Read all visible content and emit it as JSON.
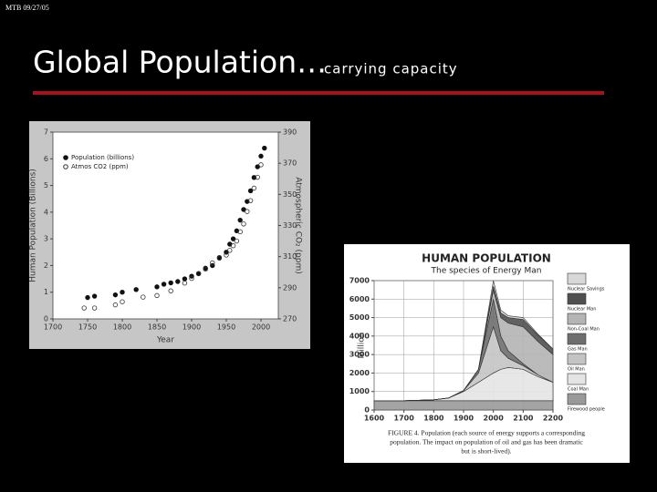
{
  "header": {
    "stamp": "MTB 09/27/05",
    "title": "Global Population…",
    "subtitle": "carrying capacity"
  },
  "chart_data": [
    {
      "type": "scatter",
      "xlabel": "Year",
      "ylabel": "Human Population (Billions)",
      "y2label": "Atmospheric CO₂ (ppm)",
      "xlim": [
        1700,
        2025
      ],
      "xticks": [
        1700,
        1750,
        1800,
        1850,
        1900,
        1950,
        2000
      ],
      "ylim": [
        0,
        7
      ],
      "yticks": [
        0,
        1,
        2,
        3,
        4,
        5,
        6,
        7
      ],
      "y2lim": [
        270,
        390
      ],
      "y2ticks": [
        270,
        290,
        310,
        330,
        350,
        370,
        390
      ],
      "grid": false,
      "legend": "upper left",
      "series": [
        {
          "name": "Population (billions)",
          "color": "#111111",
          "filled": true,
          "x": [
            1750,
            1760,
            1790,
            1800,
            1820,
            1850,
            1860,
            1870,
            1880,
            1890,
            1900,
            1910,
            1920,
            1930,
            1940,
            1950,
            1955,
            1960,
            1965,
            1970,
            1975,
            1980,
            1985,
            1990,
            1995,
            2000,
            2005
          ],
          "values": [
            0.8,
            0.85,
            0.9,
            1.0,
            1.1,
            1.2,
            1.3,
            1.35,
            1.4,
            1.5,
            1.6,
            1.7,
            1.9,
            2.0,
            2.3,
            2.5,
            2.8,
            3.0,
            3.3,
            3.7,
            4.1,
            4.4,
            4.8,
            5.3,
            5.7,
            6.1,
            6.4
          ]
        },
        {
          "name": "Atmos CO2 (ppm)",
          "color": "#333333",
          "filled": false,
          "axis": "y2",
          "x": [
            1745,
            1760,
            1790,
            1800,
            1830,
            1850,
            1870,
            1890,
            1900,
            1910,
            1920,
            1930,
            1940,
            1950,
            1955,
            1960,
            1965,
            1970,
            1975,
            1980,
            1985,
            1990,
            1995,
            2000
          ],
          "values": [
            277,
            277,
            279,
            281,
            284,
            285,
            288,
            293,
            296,
            299,
            302,
            306,
            309,
            311,
            314,
            317,
            320,
            326,
            331,
            339,
            346,
            354,
            361,
            369
          ]
        }
      ]
    },
    {
      "type": "area",
      "title": "HUMAN POPULATION",
      "subtitle": "The species of Energy Man",
      "ylabel": "Million",
      "xlim": [
        1600,
        2200
      ],
      "xticks": [
        1600,
        1700,
        1800,
        1900,
        2000,
        2100,
        2200
      ],
      "ylim": [
        0,
        7000
      ],
      "yticks": [
        0,
        1000,
        2000,
        3000,
        4000,
        5000,
        6000,
        7000
      ],
      "grid": true,
      "legend": "right",
      "x": [
        1600,
        1700,
        1800,
        1850,
        1900,
        1950,
        2000,
        2025,
        2050,
        2100,
        2150,
        2200
      ],
      "series": [
        {
          "name": "Firewood people",
          "color": "#9a9a9a",
          "values": [
            500,
            500,
            500,
            500,
            500,
            500,
            500,
            500,
            500,
            500,
            500,
            500
          ]
        },
        {
          "name": "Coal Man",
          "color": "#e4e4e4",
          "values": [
            0,
            0,
            50,
            150,
            500,
            1000,
            1500,
            1700,
            1800,
            1700,
            1300,
            1000
          ]
        },
        {
          "name": "Oil Man",
          "color": "#c4c4c4",
          "values": [
            0,
            0,
            0,
            0,
            50,
            500,
            2500,
            1000,
            500,
            200,
            100,
            0
          ]
        },
        {
          "name": "Gas Man",
          "color": "#6e6e6e",
          "values": [
            0,
            0,
            0,
            0,
            0,
            200,
            1500,
            800,
            400,
            100,
            0,
            0
          ]
        },
        {
          "name": "Non-Coal Man",
          "color": "#b4b4b4",
          "values": [
            0,
            0,
            0,
            0,
            0,
            0,
            500,
            1000,
            1500,
            2000,
            1800,
            1500
          ]
        },
        {
          "name": "Nuclear Man",
          "color": "#505050",
          "values": [
            0,
            0,
            0,
            0,
            0,
            0,
            200,
            250,
            300,
            400,
            350,
            300
          ]
        },
        {
          "name": "Nuclear Savings",
          "color": "#d8d8d8",
          "values": [
            0,
            0,
            0,
            0,
            0,
            0,
            300,
            150,
            100,
            100,
            50,
            0
          ]
        }
      ],
      "caption": [
        "FIGURE 4. Population (each source of energy supports a corresponding",
        "population. The impact on population of oil and gas has been dramatic",
        "but is short-lived)."
      ]
    }
  ]
}
